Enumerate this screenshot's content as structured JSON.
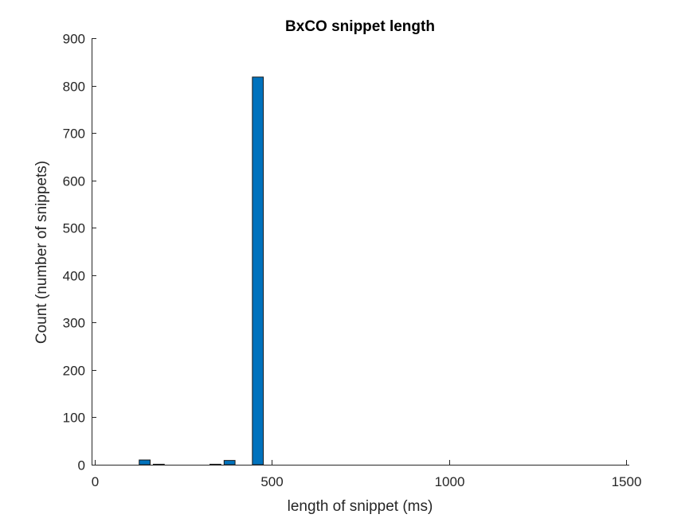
{
  "chart_data": {
    "type": "bar",
    "title": "BxCO snippet length",
    "xlabel": "length of snippet (ms)",
    "ylabel": "Count (number of snippets)",
    "xlim": [
      -10,
      1510
    ],
    "ylim": [
      0,
      900
    ],
    "xticks": [
      0,
      500,
      1000,
      1500
    ],
    "yticks": [
      0,
      100,
      200,
      300,
      400,
      500,
      600,
      700,
      800,
      900
    ],
    "bin_width": 40,
    "bin_edges_start": 0,
    "values": [
      0,
      0,
      0,
      10,
      1,
      0,
      0,
      0,
      1,
      9,
      0,
      818,
      0,
      0,
      0,
      0,
      0,
      0,
      0,
      0,
      0,
      0,
      0,
      0,
      0,
      0,
      0,
      0,
      0,
      0,
      0,
      0,
      0,
      0,
      0,
      0,
      0,
      0
    ],
    "bar_color": "#0072BD",
    "edge_color": "#1a1a1a",
    "grid": false
  }
}
